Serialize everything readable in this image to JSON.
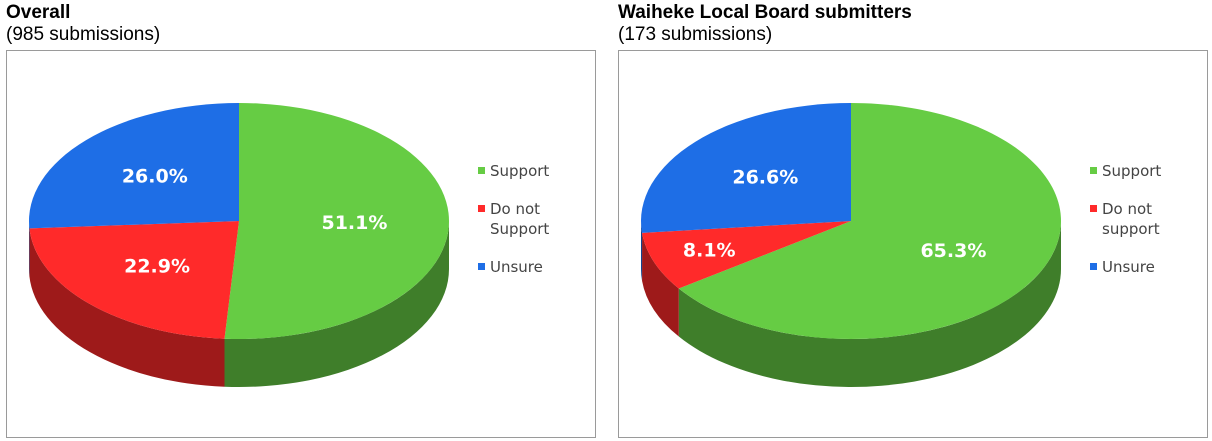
{
  "chart_data": [
    {
      "type": "pie",
      "title": "Overall",
      "subtitle": "(985 submissions)",
      "categories": [
        "Support",
        "Do not Support",
        "Unsure"
      ],
      "values": [
        51.1,
        22.9,
        26.0
      ],
      "data_labels": [
        "51.1%",
        "22.9%",
        "26.0%"
      ],
      "colors": [
        "#66cc44",
        "#ff2a2a",
        "#1e6ee6"
      ],
      "legend": [
        "Support",
        "Do not Support",
        "Unsure"
      ],
      "legend_position": "right"
    },
    {
      "type": "pie",
      "title": "Waiheke Local Board submitters",
      "subtitle": "(173 submissions)",
      "categories": [
        "Support",
        "Do not support",
        "Unsure"
      ],
      "values": [
        65.3,
        8.1,
        26.6
      ],
      "data_labels": [
        "65.3%",
        "8.1%",
        "26.6%"
      ],
      "colors": [
        "#66cc44",
        "#ff2a2a",
        "#1e6ee6"
      ],
      "legend": [
        "Support",
        "Do not support",
        "Unsure"
      ],
      "legend_position": "right"
    }
  ]
}
